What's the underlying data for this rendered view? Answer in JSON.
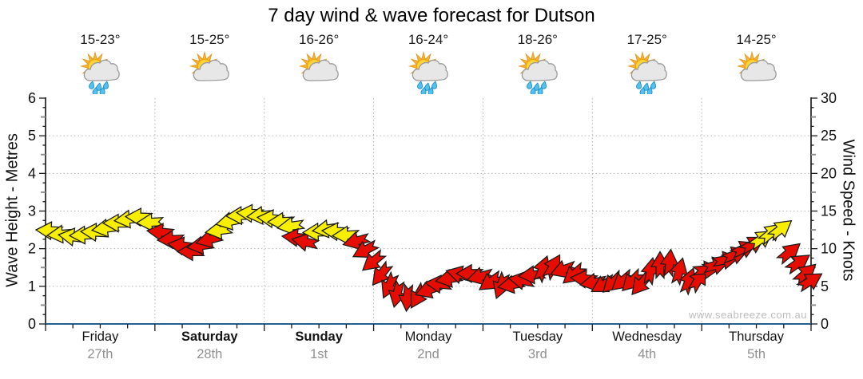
{
  "title": "7 day wind & wave forecast for Dutson",
  "watermark": "www.seabreeze.com.au",
  "days": [
    {
      "name": "Friday",
      "date": "27th",
      "temp": "15-23°",
      "icon": "sun-cloud-rain",
      "bold": false
    },
    {
      "name": "Saturday",
      "date": "28th",
      "temp": "15-25°",
      "icon": "sun-cloud",
      "bold": true
    },
    {
      "name": "Sunday",
      "date": "1st",
      "temp": "16-26°",
      "icon": "sun-cloud",
      "bold": true
    },
    {
      "name": "Monday",
      "date": "2nd",
      "temp": "16-24°",
      "icon": "sun-cloud-rain",
      "bold": false
    },
    {
      "name": "Tuesday",
      "date": "3rd",
      "temp": "18-26°",
      "icon": "sun-cloud-rain",
      "bold": false
    },
    {
      "name": "Wednesday",
      "date": "4th",
      "temp": "17-25°",
      "icon": "sun-cloud-rain",
      "bold": false
    },
    {
      "name": "Thursday",
      "date": "5th",
      "temp": "14-25°",
      "icon": "sun-cloud",
      "bold": false
    }
  ],
  "chart_data": {
    "type": "wind-arrow-series",
    "grid": true,
    "left_axis": {
      "label": "Wave Height - Metres",
      "min": 0,
      "max": 6,
      "ticks": [
        0,
        1,
        2,
        3,
        4,
        5,
        6
      ]
    },
    "right_axis": {
      "label": "Wind Speed - Knots",
      "min": 0,
      "max": 30,
      "ticks": [
        0,
        5,
        10,
        15,
        20,
        25,
        30
      ]
    },
    "colors": {
      "yellow": "#F8EF00",
      "red": "#E60D00",
      "axis_bottom": "#25618F",
      "grid": "#B5B5B5"
    },
    "arrows_format": [
      "x_px",
      "knots",
      "dir_deg_cw_from_east",
      "color(y=yellow,r=red)"
    ],
    "arrows": [
      [
        62,
        12.4,
        183,
        "y"
      ],
      [
        76,
        11.9,
        175,
        "y"
      ],
      [
        90,
        11.6,
        188,
        "y"
      ],
      [
        104,
        11.8,
        178,
        "y"
      ],
      [
        118,
        12.2,
        183,
        "y"
      ],
      [
        132,
        12.7,
        172,
        "y"
      ],
      [
        146,
        13.4,
        180,
        "y"
      ],
      [
        160,
        13.9,
        174,
        "y"
      ],
      [
        174,
        14.2,
        182,
        "y"
      ],
      [
        188,
        13.5,
        177,
        "y"
      ],
      [
        201,
        12.2,
        186,
        "r"
      ],
      [
        214,
        11.2,
        178,
        "r"
      ],
      [
        227,
        10.4,
        188,
        "r"
      ],
      [
        239,
        9.6,
        180,
        "r"
      ],
      [
        251,
        10.4,
        172,
        "r"
      ],
      [
        262,
        11.2,
        165,
        "r"
      ],
      [
        274,
        12.4,
        172,
        "y"
      ],
      [
        287,
        13.6,
        168,
        "y"
      ],
      [
        300,
        14.4,
        178,
        "y"
      ],
      [
        313,
        14.7,
        183,
        "y"
      ],
      [
        326,
        14.4,
        175,
        "y"
      ],
      [
        339,
        14.0,
        185,
        "y"
      ],
      [
        352,
        13.6,
        178,
        "y"
      ],
      [
        364,
        13.0,
        172,
        "y"
      ],
      [
        370,
        11.5,
        185,
        "r"
      ],
      [
        382,
        10.9,
        192,
        "r"
      ],
      [
        396,
        12.2,
        178,
        "y"
      ],
      [
        408,
        12.6,
        172,
        "y"
      ],
      [
        420,
        12.3,
        183,
        "y"
      ],
      [
        433,
        11.8,
        177,
        "y"
      ],
      [
        446,
        11.0,
        165,
        "r"
      ],
      [
        457,
        9.8,
        152,
        "r"
      ],
      [
        467,
        8.3,
        140,
        "r"
      ],
      [
        477,
        6.6,
        128,
        "r"
      ],
      [
        487,
        5.1,
        115,
        "r"
      ],
      [
        497,
        4.0,
        103,
        "r"
      ],
      [
        510,
        3.5,
        95,
        "r"
      ],
      [
        523,
        3.7,
        120,
        "r"
      ],
      [
        536,
        4.5,
        160,
        "r"
      ],
      [
        549,
        5.3,
        185,
        "r"
      ],
      [
        562,
        6.0,
        170,
        "r"
      ],
      [
        575,
        6.6,
        195,
        "r"
      ],
      [
        588,
        6.7,
        180,
        "r"
      ],
      [
        601,
        6.3,
        165,
        "r"
      ],
      [
        614,
        5.6,
        145,
        "r"
      ],
      [
        627,
        5.1,
        110,
        "r"
      ],
      [
        640,
        5.2,
        170,
        "r"
      ],
      [
        653,
        5.8,
        190,
        "r"
      ],
      [
        666,
        6.5,
        175,
        "r"
      ],
      [
        679,
        7.3,
        290,
        "r"
      ],
      [
        692,
        7.6,
        300,
        "r"
      ],
      [
        705,
        7.2,
        160,
        "r"
      ],
      [
        718,
        6.6,
        140,
        "r"
      ],
      [
        731,
        6.0,
        185,
        "r"
      ],
      [
        743,
        5.5,
        170,
        "r"
      ],
      [
        755,
        5.2,
        150,
        "r"
      ],
      [
        767,
        5.5,
        135,
        "r"
      ],
      [
        779,
        5.7,
        140,
        "r"
      ],
      [
        791,
        5.7,
        135,
        "r"
      ],
      [
        802,
        5.3,
        130,
        "r"
      ],
      [
        814,
        7.0,
        280,
        "r"
      ],
      [
        826,
        7.8,
        270,
        "r"
      ],
      [
        838,
        8.1,
        275,
        "r"
      ],
      [
        850,
        7.0,
        285,
        "r"
      ],
      [
        862,
        5.7,
        290,
        "r"
      ],
      [
        874,
        5.9,
        300,
        "r"
      ],
      [
        884,
        7.2,
        355,
        "r"
      ],
      [
        896,
        7.8,
        345,
        "r"
      ],
      [
        908,
        8.5,
        350,
        "r"
      ],
      [
        920,
        9.2,
        340,
        "r"
      ],
      [
        931,
        10.0,
        335,
        "r"
      ],
      [
        942,
        10.6,
        330,
        "r"
      ],
      [
        953,
        11.3,
        325,
        "y"
      ],
      [
        965,
        12.1,
        320,
        "y"
      ],
      [
        977,
        12.6,
        322,
        "y"
      ],
      [
        988,
        9.5,
        320,
        "r"
      ],
      [
        999,
        8.1,
        325,
        "r"
      ],
      [
        1008,
        6.7,
        318,
        "r"
      ],
      [
        1014,
        5.7,
        328,
        "r"
      ]
    ]
  }
}
